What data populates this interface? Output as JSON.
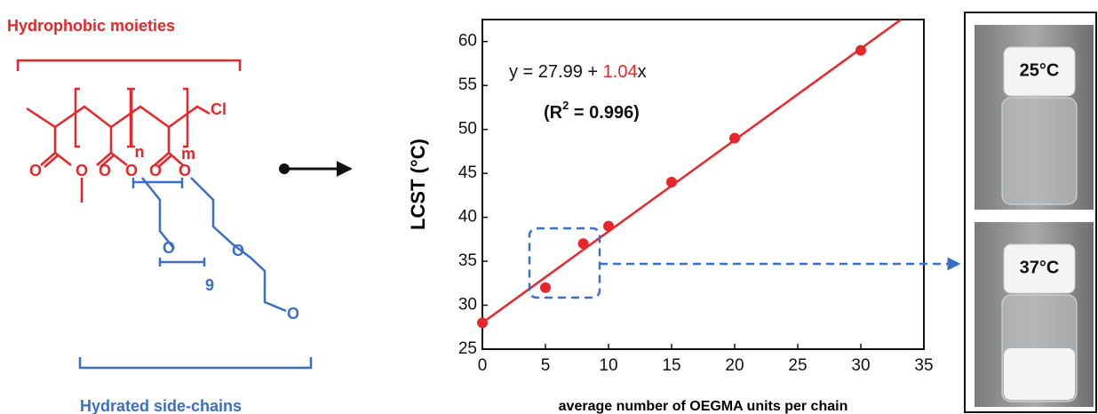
{
  "structure": {
    "top_label": "Hydrophobic moieties",
    "bottom_label": "Hydrated side-chains",
    "atoms": [
      "O",
      "O",
      "O",
      "O",
      "O",
      "O",
      "Cl",
      "n",
      "m",
      "O",
      "O",
      "9",
      "O"
    ]
  },
  "chart_data": {
    "type": "scatter",
    "x_label": "average number of OEGMA units per chain",
    "y_label": "LCST (°C)",
    "annotation": [
      "y = 27.99 + ",
      "1.04",
      "x"
    ],
    "r_squared": [
      "(R",
      "2",
      " = 0.996)"
    ],
    "x": [
      0,
      5,
      8,
      10,
      15,
      20,
      30
    ],
    "series": [
      {
        "color": "#e8262a",
        "values": [
          28,
          32,
          37,
          39,
          44,
          49,
          59
        ]
      }
    ],
    "fit": {
      "intercept": 27.99,
      "slope": 1.04,
      "color": "#e8262a"
    },
    "xlim": [
      0,
      35
    ],
    "xticks": [
      0,
      5,
      10,
      15,
      20,
      25,
      30,
      35
    ],
    "ylim": [
      25,
      62.5
    ],
    "yticks": [
      25,
      30,
      35,
      40,
      45,
      50,
      55,
      60
    ]
  },
  "photos": [
    "25°C",
    "37°C"
  ]
}
